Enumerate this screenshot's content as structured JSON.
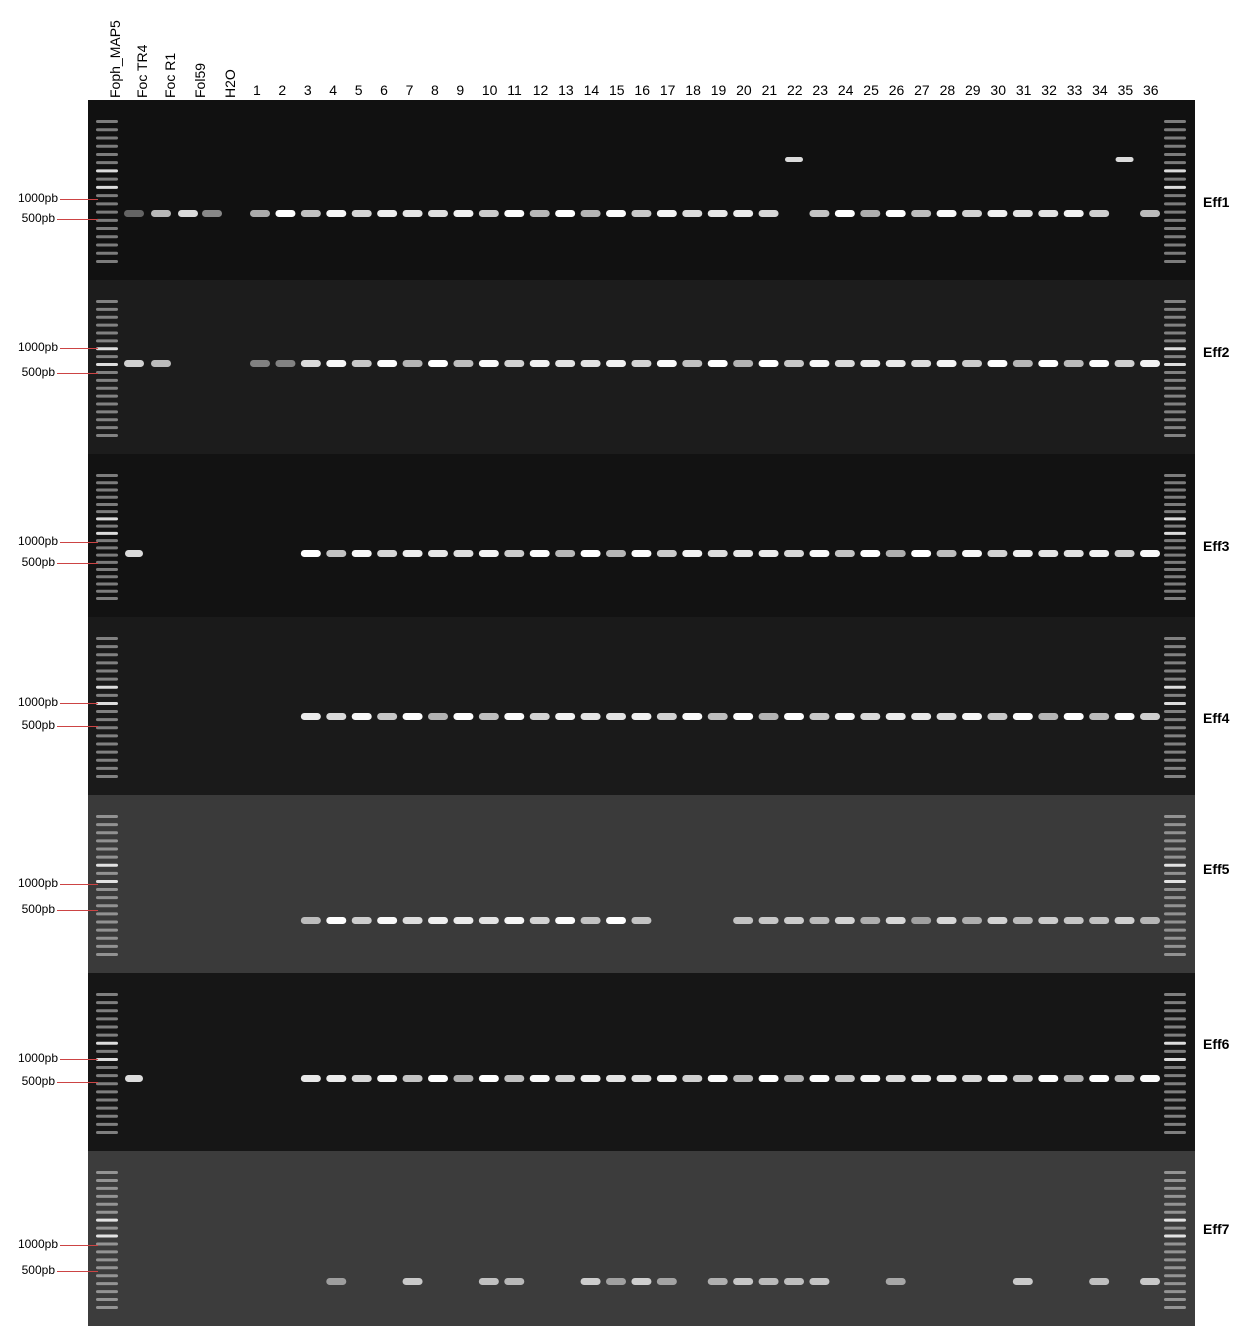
{
  "lanes": {
    "controls": [
      "Foph_MAP5",
      "Foc TR4",
      "Foc R1",
      "Fol59",
      "H2O"
    ],
    "samples": [
      "1",
      "2",
      "3",
      "4",
      "5",
      "6",
      "7",
      "8",
      "9",
      "10",
      "11",
      "12",
      "13",
      "14",
      "15",
      "16",
      "17",
      "18",
      "19",
      "20",
      "21",
      "22",
      "23",
      "24",
      "25",
      "26",
      "27",
      "28",
      "29",
      "30",
      "31",
      "32",
      "33",
      "34",
      "35",
      "36"
    ]
  },
  "markers": {
    "high": "1000pb",
    "low": "500pb"
  },
  "panels": [
    {
      "label": "Eff1",
      "bg": "#111111"
    },
    {
      "label": "Eff2",
      "bg": "#1c1c1c"
    },
    {
      "label": "Eff3",
      "bg": "#121212"
    },
    {
      "label": "Eff4",
      "bg": "#1a1a1a"
    },
    {
      "label": "Eff5",
      "bg": "#3a3a3a"
    },
    {
      "label": "Eff6",
      "bg": "#161616"
    },
    {
      "label": "Eff7",
      "bg": "#3c3c3c"
    }
  ]
}
